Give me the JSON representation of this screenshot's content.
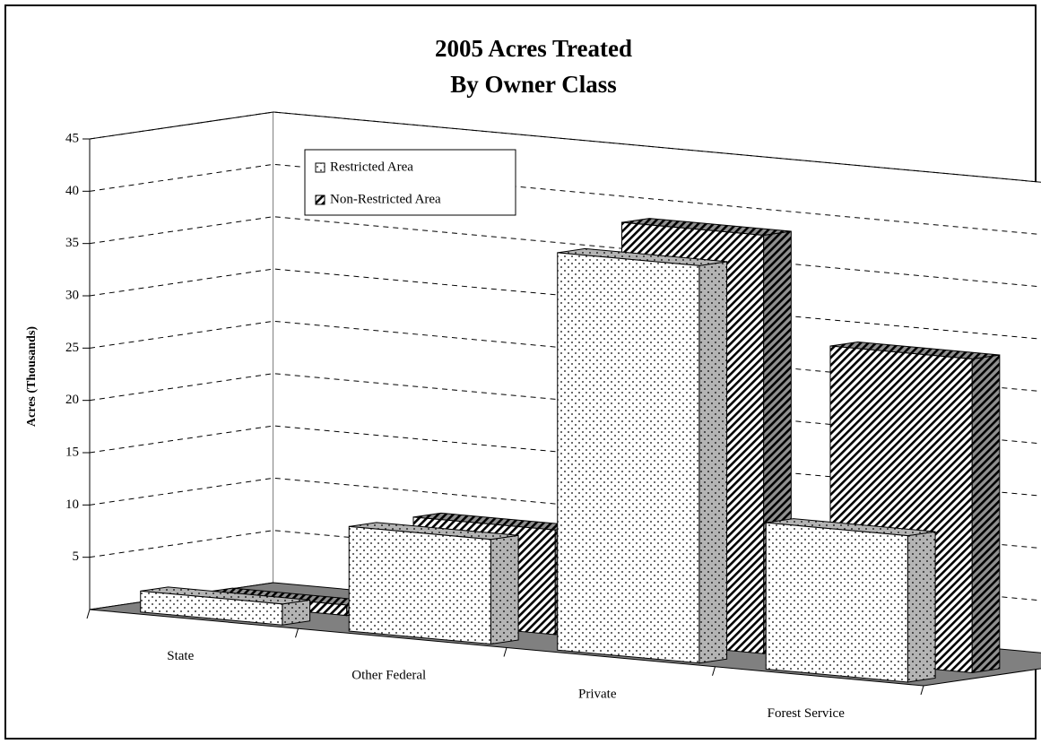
{
  "chart_data": {
    "type": "bar3d",
    "title": [
      "2005 Acres Treated",
      "By Owner Class"
    ],
    "y_label": "Acres (Thousands)",
    "categories": [
      "State",
      "Other Federal",
      "Private",
      "Forest Service"
    ],
    "series": [
      {
        "name": "Restricted Area",
        "color": "#ffffff",
        "pattern": "dots",
        "values": [
          2,
          10,
          38,
          14
        ]
      },
      {
        "name": "Non-Restricted Area",
        "color": "#ffffff",
        "pattern": "hatch",
        "values": [
          1,
          10,
          40,
          30
        ]
      }
    ],
    "ylim": [
      0,
      45
    ],
    "yticks": [
      5,
      10,
      15,
      20,
      25,
      30,
      35,
      40,
      45
    ],
    "grid": true,
    "legend": "top-left"
  }
}
